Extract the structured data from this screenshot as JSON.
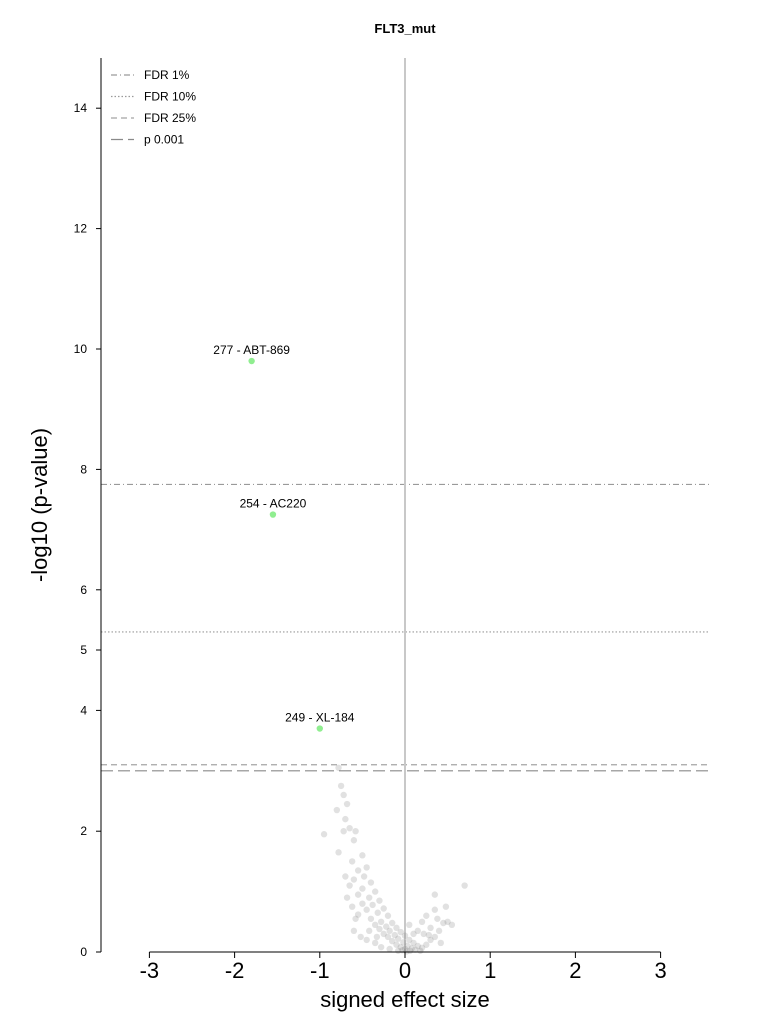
{
  "chart_data": {
    "type": "scatter",
    "title": "FLT3_mut",
    "xlabel": "signed effect size",
    "ylabel": "-log10 (p-value)",
    "xlim": [
      -3,
      3
    ],
    "ylim": [
      0,
      14
    ],
    "x_ticks": [
      "-3",
      "-2",
      "-1",
      "0",
      "1",
      "2",
      "3"
    ],
    "y_ticks": [
      "0",
      "2",
      "4",
      "5",
      "6",
      "8",
      "10",
      "12",
      "14"
    ],
    "y_scale": "piecewise (0-5 and 5-14 drawn at different scales)",
    "grid": false,
    "legend_position": "top-left",
    "thresholds": [
      {
        "name": "FDR 1%",
        "y": 7.75,
        "style": "dash-dot"
      },
      {
        "name": "FDR 10%",
        "y": 5.3,
        "style": "dotted"
      },
      {
        "name": "FDR 25%",
        "y": 3.1,
        "style": "dashed"
      },
      {
        "name": "p 0.001",
        "y": 3.0,
        "style": "long-dash"
      }
    ],
    "highlighted_points": [
      {
        "label": "277 - ABT-869",
        "x": -1.8,
        "y": 9.8
      },
      {
        "label": "254 - AC220",
        "x": -1.55,
        "y": 7.25
      },
      {
        "label": "249 - XL-184",
        "x": -1.0,
        "y": 3.7
      }
    ],
    "background_points": [
      [
        -0.78,
        3.05
      ],
      [
        -0.75,
        2.75
      ],
      [
        -0.72,
        2.6
      ],
      [
        -0.68,
        2.45
      ],
      [
        -0.8,
        2.35
      ],
      [
        -0.7,
        2.2
      ],
      [
        -0.65,
        2.05
      ],
      [
        -0.72,
        2.0
      ],
      [
        -0.58,
        2.0
      ],
      [
        -0.95,
        1.95
      ],
      [
        -0.6,
        1.85
      ],
      [
        -0.78,
        1.65
      ],
      [
        -0.5,
        1.6
      ],
      [
        -0.62,
        1.5
      ],
      [
        -0.45,
        1.4
      ],
      [
        -0.55,
        1.35
      ],
      [
        -0.48,
        1.25
      ],
      [
        -0.6,
        1.2
      ],
      [
        -0.4,
        1.15
      ],
      [
        -0.65,
        1.1
      ],
      [
        -0.5,
        1.05
      ],
      [
        -0.35,
        1.0
      ],
      [
        -0.55,
        0.95
      ],
      [
        -0.42,
        0.9
      ],
      [
        -0.3,
        0.85
      ],
      [
        -0.5,
        0.8
      ],
      [
        -0.38,
        0.78
      ],
      [
        -0.25,
        0.72
      ],
      [
        -0.45,
        0.7
      ],
      [
        -0.32,
        0.65
      ],
      [
        -0.55,
        0.62
      ],
      [
        -0.2,
        0.6
      ],
      [
        -0.4,
        0.55
      ],
      [
        -0.28,
        0.5
      ],
      [
        -0.15,
        0.48
      ],
      [
        -0.35,
        0.45
      ],
      [
        -0.22,
        0.42
      ],
      [
        -0.1,
        0.4
      ],
      [
        -0.3,
        0.38
      ],
      [
        -0.18,
        0.35
      ],
      [
        -0.05,
        0.33
      ],
      [
        -0.25,
        0.3
      ],
      [
        -0.12,
        0.28
      ],
      [
        0.0,
        0.27
      ],
      [
        -0.2,
        0.25
      ],
      [
        -0.08,
        0.22
      ],
      [
        0.05,
        0.2
      ],
      [
        -0.15,
        0.18
      ],
      [
        -0.02,
        0.16
      ],
      [
        0.1,
        0.15
      ],
      [
        -0.1,
        0.12
      ],
      [
        0.03,
        0.1
      ],
      [
        0.15,
        0.1
      ],
      [
        -0.05,
        0.08
      ],
      [
        0.08,
        0.06
      ],
      [
        0.2,
        0.07
      ],
      [
        0.0,
        0.05
      ],
      [
        0.12,
        0.04
      ],
      [
        -0.03,
        0.03
      ],
      [
        0.06,
        0.02
      ],
      [
        0.02,
        0.01
      ],
      [
        0.18,
        0.02
      ],
      [
        -0.08,
        0.02
      ],
      [
        0.25,
        0.12
      ],
      [
        0.3,
        0.2
      ],
      [
        0.35,
        0.25
      ],
      [
        0.22,
        0.3
      ],
      [
        0.4,
        0.35
      ],
      [
        0.3,
        0.4
      ],
      [
        0.45,
        0.48
      ],
      [
        0.5,
        0.5
      ],
      [
        0.38,
        0.55
      ],
      [
        0.55,
        0.45
      ],
      [
        0.25,
        0.6
      ],
      [
        0.35,
        0.7
      ],
      [
        0.48,
        0.75
      ],
      [
        0.7,
        1.1
      ],
      [
        0.35,
        0.95
      ],
      [
        0.2,
        0.5
      ],
      [
        0.15,
        0.35
      ],
      [
        0.28,
        0.28
      ],
      [
        0.42,
        0.15
      ],
      [
        0.1,
        0.3
      ],
      [
        0.05,
        0.45
      ],
      [
        -0.45,
        0.2
      ],
      [
        -0.35,
        0.15
      ],
      [
        -0.28,
        0.08
      ],
      [
        -0.18,
        0.05
      ],
      [
        -0.6,
        0.35
      ],
      [
        -0.52,
        0.25
      ],
      [
        -0.7,
        1.25
      ],
      [
        -0.68,
        0.9
      ],
      [
        -0.62,
        0.75
      ],
      [
        -0.58,
        0.55
      ],
      [
        -0.42,
        0.35
      ],
      [
        -0.33,
        0.25
      ]
    ]
  }
}
